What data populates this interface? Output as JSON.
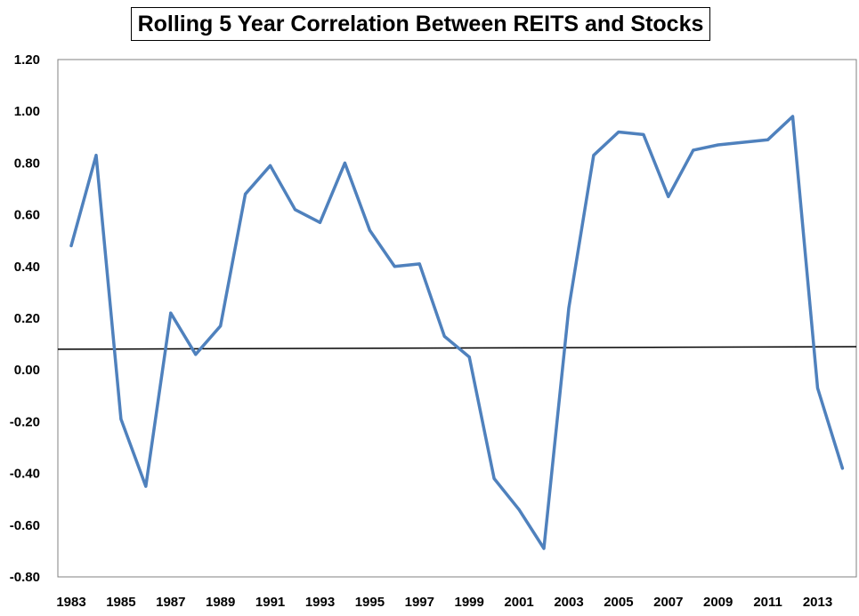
{
  "chart_data": {
    "type": "line",
    "title": "Rolling 5 Year Correlation Between REITS and Stocks",
    "xlabel": "",
    "ylabel": "",
    "ylim": [
      -0.8,
      1.2
    ],
    "xlim": [
      1983,
      2014
    ],
    "y_ticks": [
      "1.20",
      "1.00",
      "0.80",
      "0.60",
      "0.40",
      "0.20",
      "0.00",
      "-0.20",
      "-0.40",
      "-0.60",
      "-0.80"
    ],
    "x_ticks": [
      "1983",
      "1985",
      "1987",
      "1989",
      "1991",
      "1993",
      "1995",
      "1997",
      "1999",
      "2001",
      "2003",
      "2005",
      "2007",
      "2009",
      "2011",
      "2013"
    ],
    "grid": false,
    "legend": "none",
    "reference_line": {
      "y_start": 0.08,
      "y_end": 0.09
    },
    "series": [
      {
        "color": "#4F81BD",
        "x": [
          1983,
          1984,
          1985,
          1986,
          1987,
          1988,
          1989,
          1990,
          1991,
          1992,
          1993,
          1994,
          1995,
          1996,
          1997,
          1998,
          1999,
          2000,
          2001,
          2002,
          2003,
          2004,
          2005,
          2006,
          2007,
          2008,
          2009,
          2010,
          2011,
          2012,
          2013,
          2014
        ],
        "y": [
          0.48,
          0.83,
          -0.19,
          -0.45,
          0.22,
          0.06,
          0.17,
          0.68,
          0.79,
          0.62,
          0.57,
          0.8,
          0.54,
          0.4,
          0.41,
          0.13,
          0.05,
          -0.42,
          -0.54,
          -0.69,
          0.24,
          0.83,
          0.92,
          0.91,
          0.67,
          0.85,
          0.87,
          0.88,
          0.89,
          0.98,
          -0.07,
          -0.38
        ]
      }
    ]
  }
}
